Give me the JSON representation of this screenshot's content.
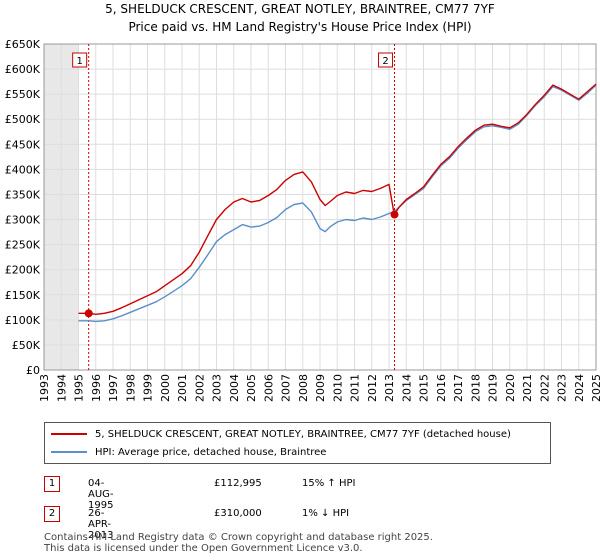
{
  "chart_data": {
    "type": "line",
    "title": "5, SHELDUCK CRESCENT, GREAT NOTLEY, BRAINTREE, CM77 7YF",
    "subtitle": "Price paid vs. HM Land Registry's House Price Index (HPI)",
    "xlabel": "",
    "ylabel": "",
    "xlim": [
      1993,
      2025
    ],
    "ylim": [
      0,
      650000
    ],
    "grid": true,
    "yticks": [
      {
        "value": 0,
        "label": "£0"
      },
      {
        "value": 50000,
        "label": "£50K"
      },
      {
        "value": 100000,
        "label": "£100K"
      },
      {
        "value": 150000,
        "label": "£150K"
      },
      {
        "value": 200000,
        "label": "£200K"
      },
      {
        "value": 250000,
        "label": "£250K"
      },
      {
        "value": 300000,
        "label": "£300K"
      },
      {
        "value": 350000,
        "label": "£350K"
      },
      {
        "value": 400000,
        "label": "£400K"
      },
      {
        "value": 450000,
        "label": "£450K"
      },
      {
        "value": 500000,
        "label": "£500K"
      },
      {
        "value": 550000,
        "label": "£550K"
      },
      {
        "value": 600000,
        "label": "£600K"
      },
      {
        "value": 650000,
        "label": "£650K"
      }
    ],
    "xticks": [
      "1993",
      "1994",
      "1995",
      "1996",
      "1997",
      "1998",
      "1999",
      "2000",
      "2001",
      "2002",
      "2003",
      "2004",
      "2005",
      "2006",
      "2007",
      "2008",
      "2009",
      "2010",
      "2011",
      "2012",
      "2013",
      "2014",
      "2015",
      "2016",
      "2017",
      "2018",
      "2019",
      "2020",
      "2021",
      "2022",
      "2023",
      "2024",
      "2025"
    ],
    "x": [
      1995.0,
      1995.6,
      1996.0,
      1996.5,
      1997.0,
      1997.5,
      1998.0,
      1998.5,
      1999.0,
      1999.5,
      2000.0,
      2000.5,
      2001.0,
      2001.5,
      2002.0,
      2002.5,
      2003.0,
      2003.5,
      2004.0,
      2004.5,
      2005.0,
      2005.5,
      2006.0,
      2006.5,
      2007.0,
      2007.5,
      2008.0,
      2008.5,
      2009.0,
      2009.3,
      2009.6,
      2010.0,
      2010.5,
      2011.0,
      2011.5,
      2012.0,
      2012.5,
      2013.0,
      2013.3,
      2013.6,
      2014.0,
      2014.5,
      2015.0,
      2015.5,
      2016.0,
      2016.5,
      2017.0,
      2017.5,
      2018.0,
      2018.5,
      2019.0,
      2019.5,
      2020.0,
      2020.5,
      2021.0,
      2021.5,
      2022.0,
      2022.5,
      2023.0,
      2023.5,
      2024.0,
      2024.5,
      2025.0
    ],
    "series": [
      {
        "name": "5, SHELDUCK CRESCENT, GREAT NOTLEY, BRAINTREE, CM77 7YF (detached house)",
        "color": "#cc0000",
        "values": [
          113000,
          112995,
          111000,
          113000,
          117000,
          124000,
          132000,
          140000,
          148000,
          156000,
          168000,
          180000,
          192000,
          208000,
          235000,
          268000,
          300000,
          320000,
          335000,
          342000,
          335000,
          338000,
          348000,
          360000,
          378000,
          390000,
          395000,
          375000,
          340000,
          328000,
          336000,
          348000,
          355000,
          352000,
          358000,
          356000,
          362000,
          370000,
          310000,
          325000,
          340000,
          352000,
          365000,
          388000,
          410000,
          425000,
          445000,
          462000,
          478000,
          488000,
          490000,
          486000,
          483000,
          493000,
          510000,
          530000,
          548000,
          568000,
          560000,
          550000,
          540000,
          555000,
          570000
        ]
      },
      {
        "name": "HPI: Average price, detached house, Braintree",
        "color": "#5b8fc9",
        "values": [
          98000,
          98000,
          97000,
          98000,
          102000,
          108000,
          115000,
          122000,
          129000,
          136000,
          146000,
          157000,
          168000,
          182000,
          205000,
          230000,
          256000,
          270000,
          280000,
          290000,
          285000,
          287000,
          294000,
          304000,
          320000,
          330000,
          333000,
          315000,
          282000,
          276000,
          286000,
          295000,
          300000,
          298000,
          303000,
          300000,
          305000,
          312000,
          316000,
          325000,
          338000,
          350000,
          362000,
          385000,
          407000,
          422000,
          442000,
          459000,
          475000,
          485000,
          487000,
          484000,
          480000,
          490000,
          508000,
          528000,
          545000,
          565000,
          558000,
          548000,
          538000,
          552000,
          568000
        ]
      }
    ],
    "sales": [
      {
        "label": "1",
        "x": 1995.59,
        "price": 112995
      },
      {
        "label": "2",
        "x": 2013.32,
        "price": 310000
      }
    ],
    "shaded_until": 1995.0
  },
  "legend": {
    "property_label": "5, SHELDUCK CRESCENT, GREAT NOTLEY, BRAINTREE, CM77 7YF (detached house)",
    "hpi_label": "HPI: Average price, detached house, Braintree"
  },
  "transactions": [
    {
      "num": "1",
      "date": "04-AUG-1995",
      "price": "£112,995",
      "hpi": "15% ↑ HPI"
    },
    {
      "num": "2",
      "date": "26-APR-2013",
      "price": "£310,000",
      "hpi": "1% ↓ HPI"
    }
  ],
  "footer": {
    "line1": "Contains HM Land Registry data © Crown copyright and database right 2025.",
    "line2": "This data is licensed under the Open Government Licence v3.0."
  }
}
